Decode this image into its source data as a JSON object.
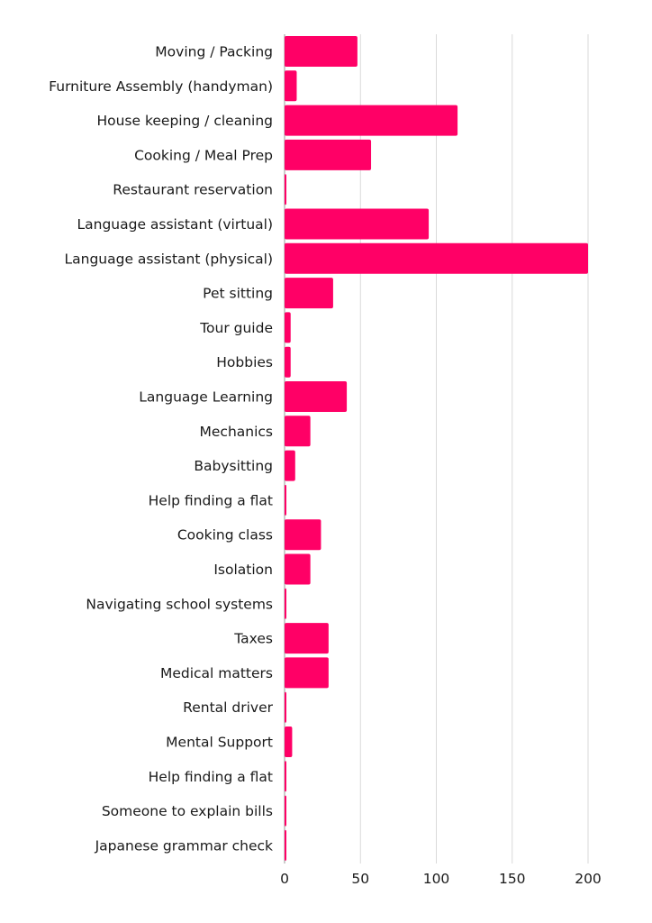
{
  "chart_data": {
    "type": "bar",
    "orientation": "horizontal",
    "categories": [
      "Moving / Packing",
      "Furniture Assembly (handyman)",
      "House keeping / cleaning",
      "Cooking / Meal Prep",
      "Restaurant reservation",
      "Language assistant (virtual)",
      "Language assistant (physical)",
      "Pet sitting",
      "Tour guide",
      "Hobbies",
      "Language Learning",
      "Mechanics",
      "Babysitting",
      "Help finding a flat",
      "Cooking class",
      "Isolation",
      "Navigating school systems",
      "Taxes",
      "Medical matters",
      "Rental driver",
      "Mental Support",
      "Help finding a flat",
      "Someone to explain bills",
      "Japanese grammar check"
    ],
    "values": [
      48,
      8,
      114,
      57,
      1,
      95,
      200,
      32,
      4,
      4,
      41,
      17,
      7,
      1,
      24,
      17,
      1,
      29,
      29,
      1,
      5,
      1,
      1,
      1
    ],
    "xlim": [
      0,
      200
    ],
    "xticks": [
      0,
      50,
      100,
      150,
      200
    ],
    "grid": true,
    "legend": false,
    "title": "",
    "xlabel": "",
    "ylabel": "",
    "colors": {
      "bar": "#ff0066",
      "grid": "#d9d9d9",
      "text": "#1a1a1a"
    }
  }
}
